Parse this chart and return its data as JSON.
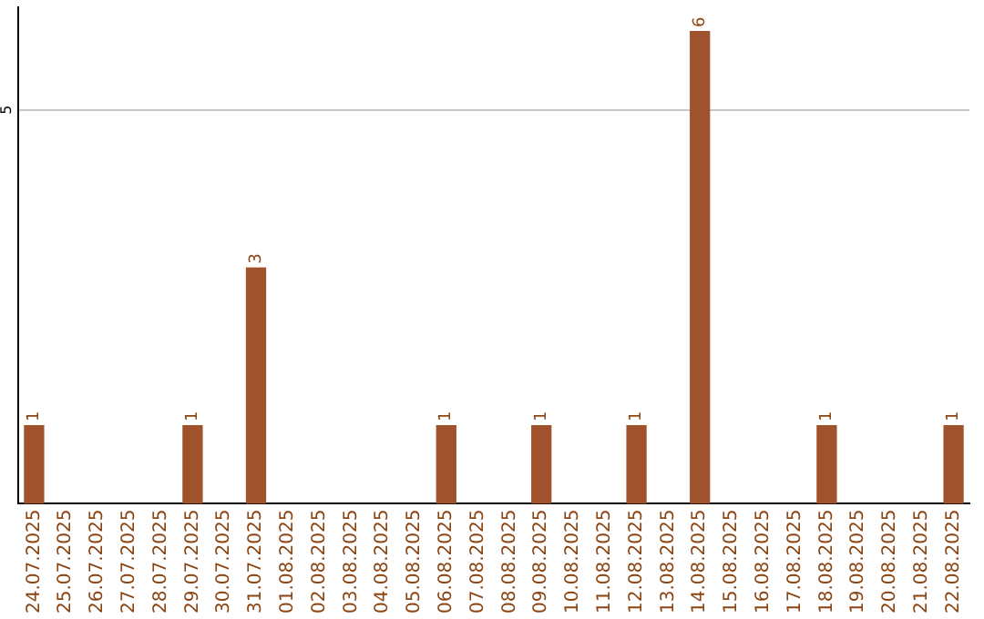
{
  "chart_data": {
    "type": "bar",
    "categories": [
      "24.07.2025",
      "25.07.2025",
      "26.07.2025",
      "27.07.2025",
      "28.07.2025",
      "29.07.2025",
      "30.07.2025",
      "31.07.2025",
      "01.08.2025",
      "02.08.2025",
      "03.08.2025",
      "04.08.2025",
      "05.08.2025",
      "06.08.2025",
      "07.08.2025",
      "08.08.2025",
      "09.08.2025",
      "10.08.2025",
      "11.08.2025",
      "12.08.2025",
      "13.08.2025",
      "14.08.2025",
      "15.08.2025",
      "16.08.2025",
      "17.08.2025",
      "18.08.2025",
      "19.08.2025",
      "20.08.2025",
      "21.08.2025",
      "22.08.2025"
    ],
    "values": [
      1,
      0,
      0,
      0,
      0,
      1,
      0,
      3,
      0,
      0,
      0,
      0,
      0,
      1,
      0,
      0,
      1,
      0,
      0,
      1,
      0,
      6,
      0,
      0,
      0,
      1,
      0,
      0,
      0,
      1
    ],
    "value_labels": [
      "1",
      null,
      null,
      null,
      null,
      "1",
      null,
      "3",
      null,
      null,
      null,
      null,
      null,
      "1",
      null,
      null,
      "1",
      null,
      null,
      "1",
      null,
      "6",
      null,
      null,
      null,
      "1",
      null,
      null,
      null,
      "1"
    ],
    "color": "#a0522d",
    "ylim": [
      0,
      6.3
    ],
    "yticks": [
      5
    ],
    "grid": "y",
    "legend": false
  }
}
